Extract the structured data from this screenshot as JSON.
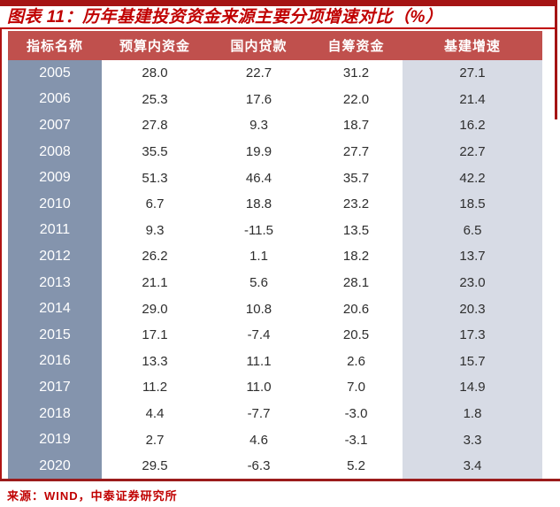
{
  "title": "图表 11：历年基建投资资金来源主要分项增速对比（%）",
  "source": "来源：WIND，中泰证券研究所",
  "colors": {
    "frame_red": "#a51414",
    "title_red": "#c00000",
    "header_bg": "#c0504d",
    "year_column_bg": "#8494ad",
    "growth_column_bg": "#d7dbe5",
    "bottom_rule": "#9b1c1c",
    "data_text": "#2e2e2e"
  },
  "table": {
    "columns": [
      "指标名称",
      "预算内资金",
      "国内贷款",
      "自筹资金",
      "基建增速"
    ],
    "rows": [
      [
        "2005",
        "28.0",
        "22.7",
        "31.2",
        "27.1"
      ],
      [
        "2006",
        "25.3",
        "17.6",
        "22.0",
        "21.4"
      ],
      [
        "2007",
        "27.8",
        "9.3",
        "18.7",
        "16.2"
      ],
      [
        "2008",
        "35.5",
        "19.9",
        "27.7",
        "22.7"
      ],
      [
        "2009",
        "51.3",
        "46.4",
        "35.7",
        "42.2"
      ],
      [
        "2010",
        "6.7",
        "18.8",
        "23.2",
        "18.5"
      ],
      [
        "2011",
        "9.3",
        "-11.5",
        "13.5",
        "6.5"
      ],
      [
        "2012",
        "26.2",
        "1.1",
        "18.2",
        "13.7"
      ],
      [
        "2013",
        "21.1",
        "5.6",
        "28.1",
        "23.0"
      ],
      [
        "2014",
        "29.0",
        "10.8",
        "20.6",
        "20.3"
      ],
      [
        "2015",
        "17.1",
        "-7.4",
        "20.5",
        "17.3"
      ],
      [
        "2016",
        "13.3",
        "11.1",
        "2.6",
        "15.7"
      ],
      [
        "2017",
        "11.2",
        "11.0",
        "7.0",
        "14.9"
      ],
      [
        "2018",
        "4.4",
        "-7.7",
        "-3.0",
        "1.8"
      ],
      [
        "2019",
        "2.7",
        "4.6",
        "-3.1",
        "3.3"
      ],
      [
        "2020",
        "29.5",
        "-6.3",
        "5.2",
        "3.4"
      ]
    ]
  },
  "chart_data": {
    "type": "table",
    "title": "图表 11：历年基建投资资金来源主要分项增速对比（%）",
    "unit": "%",
    "categories": [
      "2005",
      "2006",
      "2007",
      "2008",
      "2009",
      "2010",
      "2011",
      "2012",
      "2013",
      "2014",
      "2015",
      "2016",
      "2017",
      "2018",
      "2019",
      "2020"
    ],
    "series": [
      {
        "name": "预算内资金",
        "values": [
          28.0,
          25.3,
          27.8,
          35.5,
          51.3,
          6.7,
          9.3,
          26.2,
          21.1,
          29.0,
          17.1,
          13.3,
          11.2,
          4.4,
          2.7,
          29.5
        ]
      },
      {
        "name": "国内贷款",
        "values": [
          22.7,
          17.6,
          9.3,
          19.9,
          46.4,
          18.8,
          -11.5,
          1.1,
          5.6,
          10.8,
          -7.4,
          11.1,
          11.0,
          -7.7,
          4.6,
          -6.3
        ]
      },
      {
        "name": "自筹资金",
        "values": [
          31.2,
          22.0,
          18.7,
          27.7,
          35.7,
          23.2,
          13.5,
          18.2,
          28.1,
          20.6,
          20.5,
          2.6,
          7.0,
          -3.0,
          -3.1,
          5.2
        ]
      },
      {
        "name": "基建增速",
        "values": [
          27.1,
          21.4,
          16.2,
          22.7,
          42.2,
          18.5,
          6.5,
          13.7,
          23.0,
          20.3,
          17.3,
          15.7,
          14.9,
          1.8,
          3.3,
          3.4
        ]
      }
    ],
    "source": "来源：WIND，中泰证券研究所"
  }
}
